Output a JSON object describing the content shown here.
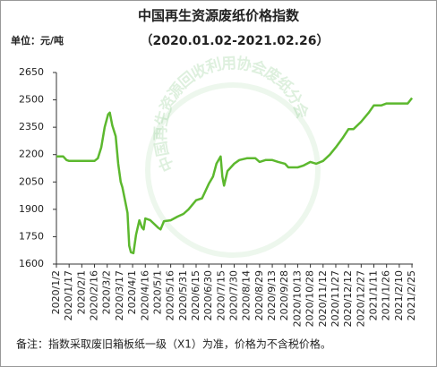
{
  "chart_data": {
    "type": "line",
    "title": "中国再生资源废纸价格指数",
    "subtitle": "（2020.01.02-2021.02.26）",
    "unit_label": "单位：元/吨",
    "note": "备注：指数采取废旧箱板纸一级（X1）为准，价格为不含税价格。",
    "watermark": "中国再生资源回收利用协会废纸分会",
    "color": "#5cb82e",
    "x": [
      "2020/1/2",
      "2020/1/10",
      "2020/1/14",
      "2020/1/17",
      "2020/2/16",
      "2020/2/20",
      "2020/2/24",
      "2020/2/28",
      "2020/3/3",
      "2020/3/5",
      "2020/3/8",
      "2020/3/12",
      "2020/3/15",
      "2020/3/18",
      "2020/3/20",
      "2020/3/23",
      "2020/3/26",
      "2020/3/28",
      "2020/3/30",
      "2020/4/2",
      "2020/4/5",
      "2020/4/9",
      "2020/4/12",
      "2020/4/14",
      "2020/4/16",
      "2020/4/22",
      "2020/5/1",
      "2020/5/4",
      "2020/5/8",
      "2020/5/16",
      "2020/5/24",
      "2020/5/31",
      "2020/6/6",
      "2020/6/15",
      "2020/6/22",
      "2020/6/30",
      "2020/7/5",
      "2020/7/9",
      "2020/7/14",
      "2020/7/16",
      "2020/7/18",
      "2020/7/22",
      "2020/7/30",
      "2020/8/5",
      "2020/8/14",
      "2020/8/24",
      "2020/8/29",
      "2020/9/5",
      "2020/9/13",
      "2020/9/20",
      "2020/9/28",
      "2020/10/2",
      "2020/10/13",
      "2020/10/20",
      "2020/10/28",
      "2020/11/4",
      "2020/11/12",
      "2020/11/20",
      "2020/11/27",
      "2020/12/5",
      "2020/12/12",
      "2020/12/18",
      "2020/12/27",
      "2021/1/5",
      "2021/1/11",
      "2021/1/20",
      "2021/1/26",
      "2021/2/10",
      "2021/2/20",
      "2021/2/25"
    ],
    "values": [
      2190,
      2190,
      2170,
      2165,
      2165,
      2180,
      2240,
      2350,
      2420,
      2430,
      2360,
      2300,
      2150,
      2050,
      2020,
      1950,
      1880,
      1700,
      1665,
      1660,
      1760,
      1840,
      1800,
      1790,
      1850,
      1840,
      1800,
      1790,
      1835,
      1840,
      1860,
      1875,
      1900,
      1950,
      1960,
      2040,
      2080,
      2150,
      2190,
      2080,
      2030,
      2110,
      2150,
      2170,
      2180,
      2180,
      2160,
      2170,
      2170,
      2160,
      2150,
      2130,
      2130,
      2140,
      2160,
      2150,
      2165,
      2200,
      2240,
      2290,
      2340,
      2340,
      2380,
      2430,
      2470,
      2470,
      2480,
      2480,
      2480,
      2510
    ],
    "xlim": [
      "2020/1/2",
      "2021/2/26"
    ],
    "xticks": [
      "2020/1/2",
      "2020/1/17",
      "2020/2/1",
      "2020/2/16",
      "2020/3/2",
      "2020/3/17",
      "2020/4/1",
      "2020/4/16",
      "2020/5/1",
      "2020/5/16",
      "2020/5/31",
      "2020/6/15",
      "2020/6/30",
      "2020/7/15",
      "2020/7/30",
      "2020/8/14",
      "2020/8/29",
      "2020/9/13",
      "2020/9/28",
      "2020/10/13",
      "2020/10/28",
      "2020/11/12",
      "2020/11/27",
      "2020/12/12",
      "2020/12/27",
      "2021/1/11",
      "2021/1/26",
      "2021/2/10",
      "2021/2/25"
    ],
    "ylim": [
      1600,
      2650
    ],
    "yticks": [
      1600,
      1750,
      1900,
      2050,
      2200,
      2350,
      2500,
      2650
    ],
    "grid": false
  }
}
